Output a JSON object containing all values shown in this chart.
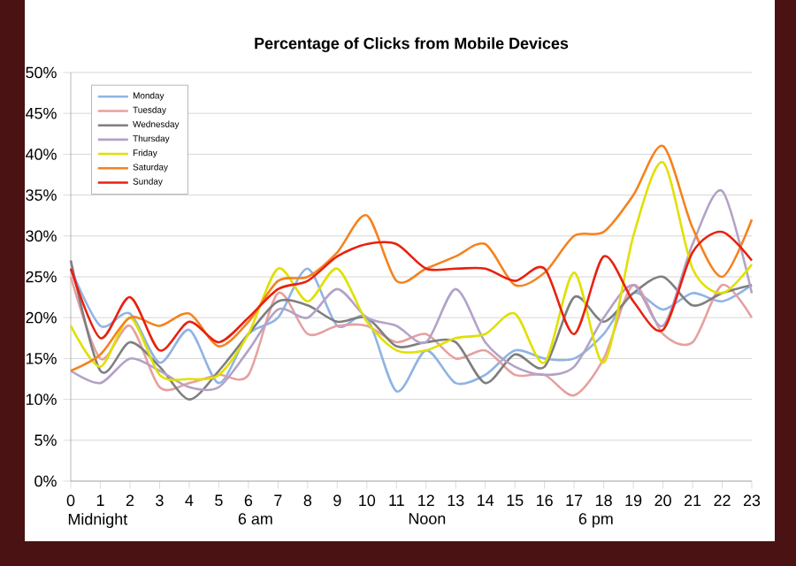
{
  "chart_data": {
    "type": "line",
    "title": "Percentage of Clicks from Mobile Devices",
    "x": [
      0,
      1,
      2,
      3,
      4,
      5,
      6,
      7,
      8,
      9,
      10,
      11,
      12,
      13,
      14,
      15,
      16,
      17,
      18,
      19,
      20,
      21,
      22,
      23
    ],
    "xlim": [
      0,
      23
    ],
    "xticks": [
      0,
      1,
      2,
      3,
      4,
      5,
      6,
      7,
      8,
      9,
      10,
      11,
      12,
      13,
      14,
      15,
      16,
      17,
      18,
      19,
      20,
      21,
      22,
      23
    ],
    "annotations": [
      "Midnight",
      "6 am",
      "Noon",
      "6 pm"
    ],
    "ylim": [
      0,
      50
    ],
    "yticks": [
      {
        "value": 0,
        "label": "0%"
      },
      {
        "value": 5,
        "label": "5%"
      },
      {
        "value": 10,
        "label": "10%"
      },
      {
        "value": 15,
        "label": "15%"
      },
      {
        "value": 20,
        "label": "20%"
      },
      {
        "value": 25,
        "label": "25%"
      },
      {
        "value": 30,
        "label": "30%"
      },
      {
        "value": 35,
        "label": "35%"
      },
      {
        "value": 40,
        "label": "40%"
      },
      {
        "value": 45,
        "label": "45%"
      },
      {
        "value": 50,
        "label": "50%"
      }
    ],
    "grid": "y",
    "legend": "top left",
    "marker": "none",
    "line_style": "solid",
    "series": [
      {
        "name": "Monday",
        "color": "#8fb4e3",
        "values": [
          26,
          19,
          20.5,
          14.5,
          18.5,
          12,
          18,
          20,
          26,
          19,
          20,
          11,
          16,
          12,
          13,
          16,
          15,
          15,
          18,
          23,
          21,
          23,
          22,
          24
        ]
      },
      {
        "name": "Tuesday",
        "color": "#e6a0a0",
        "values": [
          25,
          15,
          19,
          11.5,
          12,
          13,
          13,
          23,
          18,
          19,
          19,
          17,
          18,
          15,
          16,
          13,
          13,
          10.5,
          15,
          24,
          18,
          17,
          24,
          20
        ]
      },
      {
        "name": "Wednesday",
        "color": "#7f7f7f",
        "values": [
          27,
          13.5,
          17,
          14,
          10,
          13.5,
          18,
          22,
          21.5,
          19.5,
          20,
          16.5,
          17,
          17,
          12,
          15.5,
          14,
          22.5,
          19.5,
          23,
          25,
          21.5,
          23,
          24
        ]
      },
      {
        "name": "Thursday",
        "color": "#b3a2c7",
        "values": [
          13.5,
          12,
          15,
          13.5,
          11.5,
          11.5,
          16,
          21,
          20,
          23.5,
          20,
          19,
          17,
          23.5,
          17,
          14,
          13,
          14,
          20,
          24,
          19,
          29,
          35.5,
          23
        ]
      },
      {
        "name": "Friday",
        "color": "#e0e000",
        "values": [
          19,
          14,
          20,
          13,
          12.5,
          13,
          18,
          26,
          22,
          26,
          19.5,
          16,
          16,
          17.5,
          18,
          20.5,
          14.5,
          25.5,
          14.5,
          30,
          39,
          26,
          23,
          26.5
        ]
      },
      {
        "name": "Saturday",
        "color": "#f5821f",
        "values": [
          13.5,
          15.5,
          20,
          19,
          20.5,
          16.5,
          19.5,
          24.5,
          25,
          28,
          32.5,
          24.5,
          26,
          27.5,
          29,
          24,
          25.5,
          30,
          30.5,
          35,
          41,
          31,
          25,
          32
        ]
      },
      {
        "name": "Sunday",
        "color": "#e8210f",
        "values": [
          26,
          17.5,
          22.5,
          16,
          19.5,
          17,
          20,
          23.5,
          24.5,
          27.5,
          29,
          29,
          26,
          26,
          26,
          24.5,
          26,
          18,
          27.5,
          22,
          18.5,
          28,
          30.5,
          27
        ]
      }
    ]
  }
}
